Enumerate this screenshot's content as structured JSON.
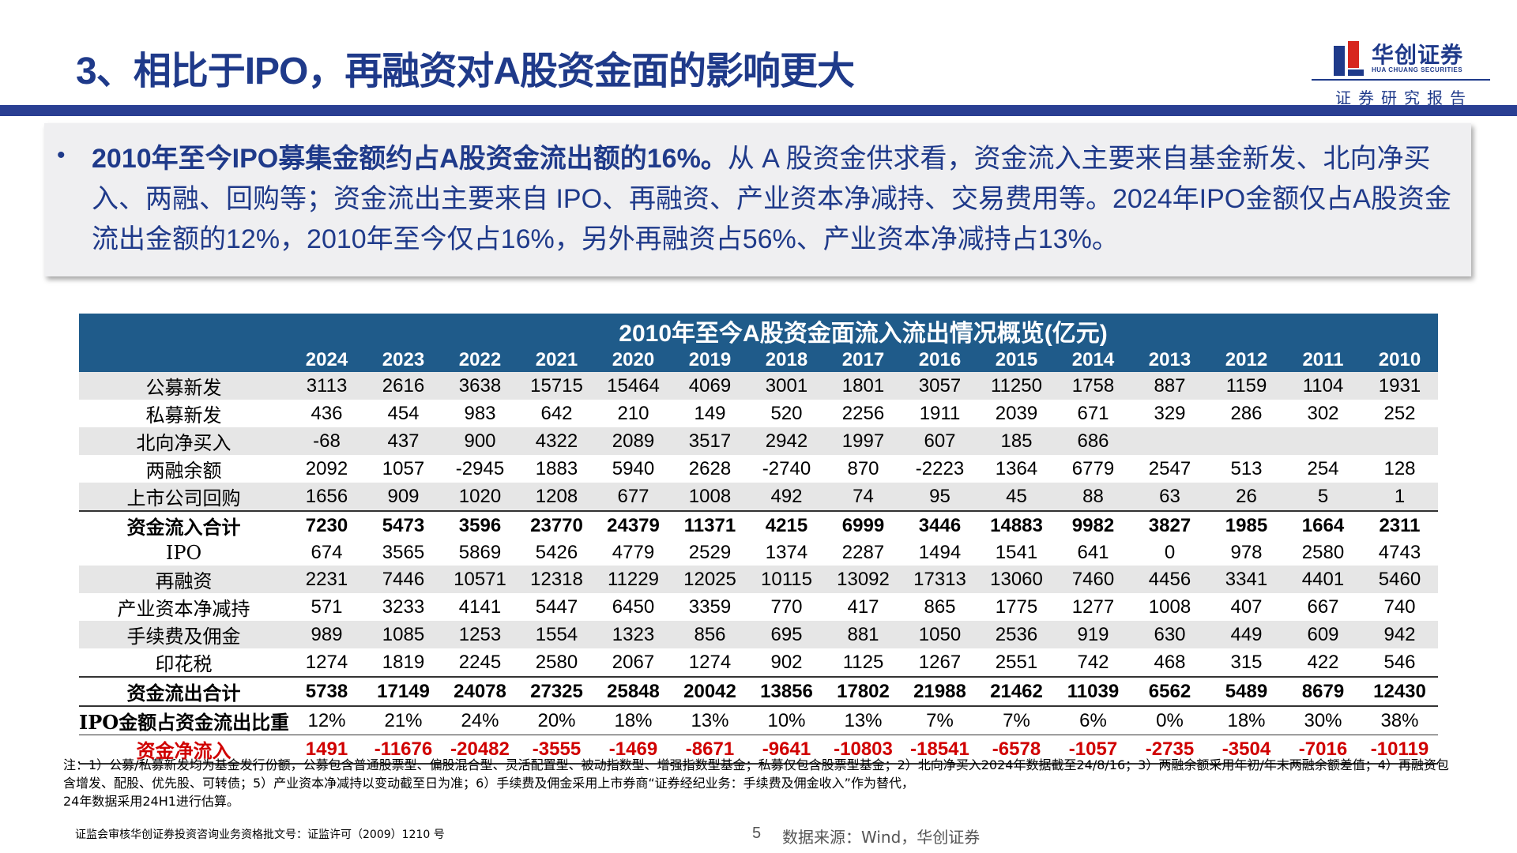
{
  "title": "3、相比于IPO，再融资对A股资金面的影响更大",
  "logo": {
    "name_cn": "华创证券",
    "name_en": "HUA CHUANG SECURITIES"
  },
  "report_label": "证券研究报告",
  "summary": {
    "bold_text": "2010年至今IPO募集金额约占A股资金流出额的16%。",
    "text": "从 A 股资金供求看，资金流入主要来自基金新发、北向净买入、两融、回购等；资金流出主要来自 IPO、再融资、产业资本净减持、交易费用等。2024年IPO金额仅占A股资金流出金额的12%，2010年至今仅占16%，另外再融资占56%、产业资本净减持占13%。"
  },
  "table": {
    "title": "2010年至今A股资金面流入流出情况概览(亿元)",
    "years": [
      "2024",
      "2023",
      "2022",
      "2021",
      "2020",
      "2019",
      "2018",
      "2017",
      "2016",
      "2015",
      "2014",
      "2013",
      "2012",
      "2011",
      "2010"
    ],
    "rows": [
      {
        "label": "公募新发",
        "style": "shaded",
        "values": [
          "3113",
          "2616",
          "3638",
          "15715",
          "15464",
          "4069",
          "3001",
          "1801",
          "3057",
          "11250",
          "1758",
          "887",
          "1159",
          "1104",
          "1931"
        ]
      },
      {
        "label": "私募新发",
        "style": "plain",
        "values": [
          "436",
          "454",
          "983",
          "642",
          "210",
          "149",
          "520",
          "2256",
          "1911",
          "2039",
          "671",
          "329",
          "286",
          "302",
          "252"
        ]
      },
      {
        "label": "北向净买入",
        "style": "shaded",
        "values": [
          "-68",
          "437",
          "900",
          "4322",
          "2089",
          "3517",
          "2942",
          "1997",
          "607",
          "185",
          "686",
          "",
          "",
          "",
          ""
        ]
      },
      {
        "label": "两融余额",
        "style": "plain",
        "values": [
          "2092",
          "1057",
          "-2945",
          "1883",
          "5940",
          "2628",
          "-2740",
          "870",
          "-2223",
          "1364",
          "6779",
          "2547",
          "513",
          "254",
          "128"
        ]
      },
      {
        "label": "上市公司回购",
        "style": "shaded",
        "values": [
          "1656",
          "909",
          "1020",
          "1208",
          "677",
          "1008",
          "492",
          "74",
          "95",
          "45",
          "88",
          "63",
          "26",
          "5",
          "1"
        ]
      },
      {
        "label": "资金流入合计",
        "style": "total",
        "values": [
          "7230",
          "5473",
          "3596",
          "23770",
          "24379",
          "11371",
          "4215",
          "6999",
          "3446",
          "14883",
          "9982",
          "3827",
          "1985",
          "1664",
          "2311"
        ]
      },
      {
        "label": "IPO",
        "style": "plain",
        "values": [
          "674",
          "3565",
          "5869",
          "5426",
          "4779",
          "2529",
          "1374",
          "2287",
          "1494",
          "1541",
          "641",
          "0",
          "978",
          "2580",
          "4743"
        ]
      },
      {
        "label": "再融资",
        "style": "shaded",
        "values": [
          "2231",
          "7446",
          "10571",
          "12318",
          "11229",
          "12025",
          "10115",
          "13092",
          "17313",
          "13060",
          "7460",
          "4456",
          "3341",
          "4401",
          "5460"
        ]
      },
      {
        "label": "产业资本净减持",
        "style": "plain",
        "values": [
          "571",
          "3233",
          "4141",
          "5447",
          "6450",
          "3359",
          "770",
          "417",
          "865",
          "1775",
          "1277",
          "1008",
          "407",
          "667",
          "740"
        ]
      },
      {
        "label": "手续费及佣金",
        "style": "shaded",
        "values": [
          "989",
          "1085",
          "1253",
          "1554",
          "1323",
          "856",
          "695",
          "881",
          "1050",
          "2536",
          "919",
          "630",
          "449",
          "609",
          "942"
        ]
      },
      {
        "label": "印花税",
        "style": "plain",
        "values": [
          "1274",
          "1819",
          "2245",
          "2580",
          "2067",
          "1274",
          "902",
          "1125",
          "1267",
          "2551",
          "742",
          "468",
          "315",
          "422",
          "546"
        ]
      },
      {
        "label": "资金流出合计",
        "style": "total",
        "values": [
          "5738",
          "17149",
          "24078",
          "27325",
          "25848",
          "20042",
          "13856",
          "17802",
          "21988",
          "21462",
          "11039",
          "6562",
          "5489",
          "8679",
          "12430"
        ]
      },
      {
        "label": "IPO金额占资金流出比重",
        "style": "ratio",
        "values": [
          "12%",
          "21%",
          "24%",
          "20%",
          "18%",
          "13%",
          "10%",
          "13%",
          "7%",
          "7%",
          "6%",
          "0%",
          "18%",
          "30%",
          "38%"
        ]
      },
      {
        "label": "资金净流入",
        "style": "net",
        "values": [
          "1491",
          "-11676",
          "-20482",
          "-3555",
          "-1469",
          "-8671",
          "-9641",
          "-10803",
          "-18541",
          "-6578",
          "-1057",
          "-2735",
          "-3504",
          "-7016",
          "-10119"
        ]
      }
    ]
  },
  "notes": [
    "注：1）公募/私募新发均为基金发行份额，公募包含普通股票型、偏股混合型、灵活配置型、被动指数型、增强指数型基金；私募仅包含股票型基金；2）北向净买入2024年数据截至24/8/16；3）两融余额采用年初/年末两融余额差值；4）再融资包含增发、配股、优先股、可转债；5）产业资本净减持以变动截至日为准；6）手续费及佣金采用上市券商“证券经纪业务：手续费及佣金收入”作为替代，",
    "24年数据采用24H1进行估算。"
  ],
  "footer": {
    "license": "证监会审核华创证券投资咨询业务资格批文号：证监许可（2009）1210 号",
    "page": "5",
    "source": "数据来源：Wind，华创证券"
  },
  "colors": {
    "brand_blue": "#1f3a8a",
    "table_header": "#1f5b8a",
    "net_red": "#d00000",
    "shade": "#e6e6e6"
  }
}
